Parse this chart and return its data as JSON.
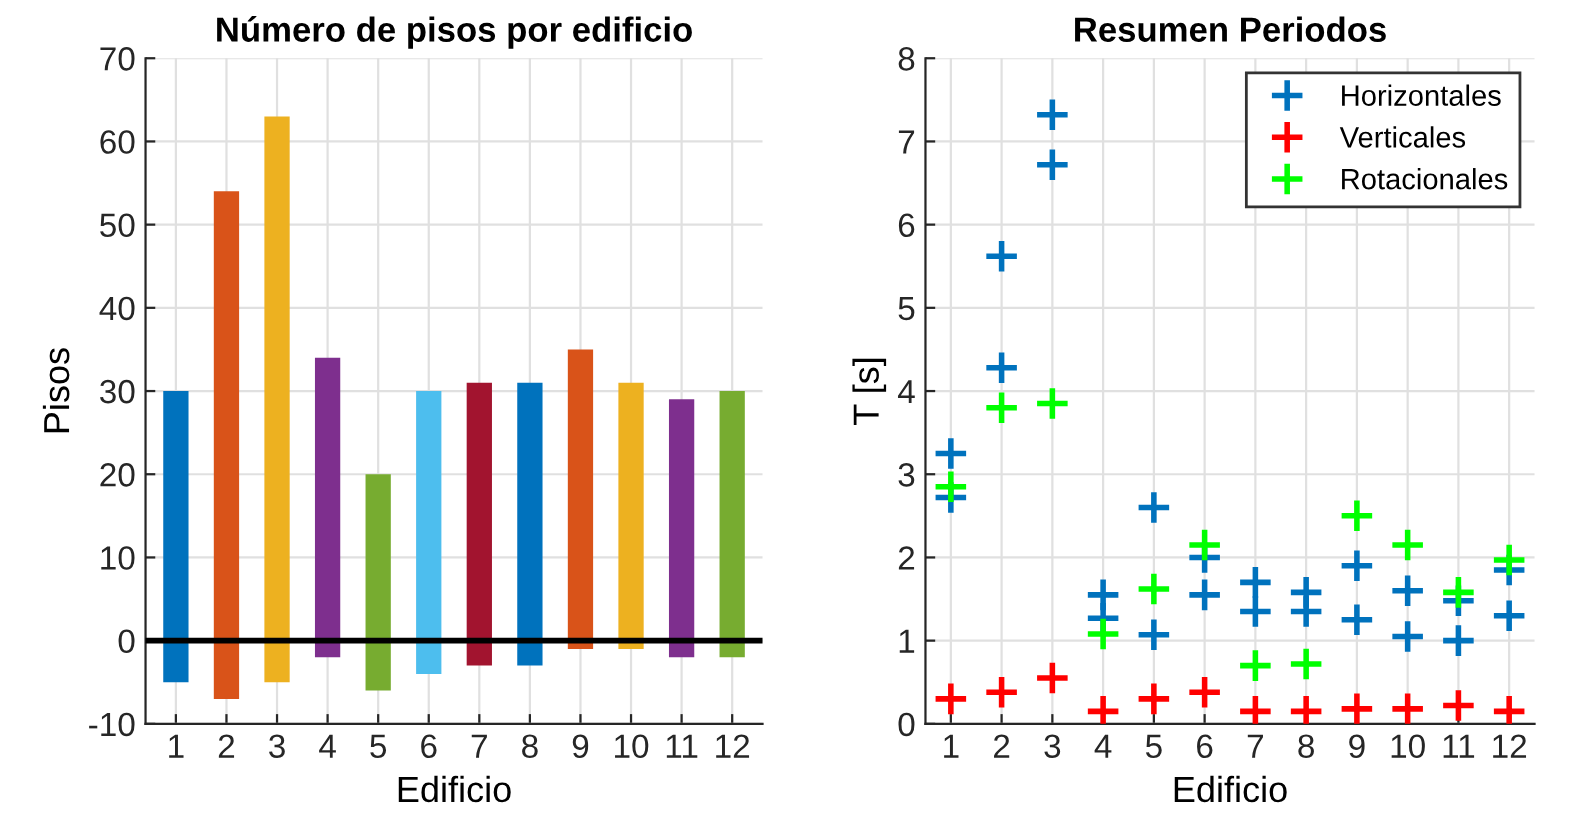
{
  "chart_data": [
    {
      "type": "bar",
      "title": "Número de pisos por edificio",
      "xlabel": "Edificio",
      "ylabel": "Pisos",
      "categories": [
        "1",
        "2",
        "3",
        "4",
        "5",
        "6",
        "7",
        "8",
        "9",
        "10",
        "11",
        "12"
      ],
      "base": [
        -5,
        -7,
        -5,
        -2,
        -6,
        -4,
        -3,
        -3,
        -1,
        -1,
        -2,
        -2
      ],
      "values": [
        35,
        61,
        68,
        36,
        26,
        34,
        34,
        34,
        36,
        32,
        31,
        32
      ],
      "colors": [
        "#0072bd",
        "#d95319",
        "#edb120",
        "#7e2f8e",
        "#77ac30",
        "#4dbeee",
        "#a2142f",
        "#0072bd",
        "#d95319",
        "#edb120",
        "#7e2f8e",
        "#77ac30"
      ],
      "ylim": [
        -10,
        70
      ],
      "yticks": [
        -10,
        0,
        10,
        20,
        30,
        40,
        50,
        60,
        70
      ],
      "ref_lines": [
        {
          "axis": "y",
          "value": 0,
          "color": "#000000"
        }
      ],
      "grid": true
    },
    {
      "type": "scatter",
      "title": "Resumen Periodos",
      "xlabel": "Edificio",
      "ylabel": "T [s]",
      "series": [
        {
          "name": "Horizontales",
          "color": "#0072bd",
          "x": [
            1,
            1,
            2,
            2,
            3,
            3,
            4,
            4,
            5,
            5,
            6,
            6,
            7,
            7,
            8,
            8,
            9,
            9,
            10,
            10,
            11,
            11,
            12,
            12
          ],
          "values": [
            3.25,
            2.72,
            5.62,
            4.28,
            7.32,
            6.72,
            1.55,
            1.27,
            2.6,
            1.07,
            2.0,
            1.55,
            1.7,
            1.35,
            1.58,
            1.35,
            1.9,
            1.25,
            1.6,
            1.05,
            1.48,
            1.0,
            1.85,
            1.3
          ]
        },
        {
          "name": "Verticales",
          "color": "#ff0000",
          "x": [
            1,
            2,
            3,
            4,
            5,
            6,
            7,
            8,
            9,
            10,
            11,
            12
          ],
          "values": [
            0.3,
            0.38,
            0.55,
            0.15,
            0.3,
            0.38,
            0.15,
            0.15,
            0.18,
            0.18,
            0.22,
            0.15
          ]
        },
        {
          "name": "Rotacionales",
          "color": "#00ff00",
          "x": [
            1,
            2,
            3,
            4,
            5,
            6,
            7,
            8,
            9,
            10,
            11,
            12
          ],
          "values": [
            2.85,
            3.8,
            3.85,
            1.08,
            1.62,
            2.15,
            0.7,
            0.72,
            2.5,
            2.15,
            1.58,
            1.97
          ]
        }
      ],
      "xlim": [
        0.5,
        12.5
      ],
      "xticks": [
        1,
        2,
        3,
        4,
        5,
        6,
        7,
        8,
        9,
        10,
        11,
        12
      ],
      "ylim": [
        0,
        8
      ],
      "yticks": [
        0,
        1,
        2,
        3,
        4,
        5,
        6,
        7,
        8
      ],
      "marker": "cross",
      "legend": "top right",
      "grid": true
    }
  ]
}
